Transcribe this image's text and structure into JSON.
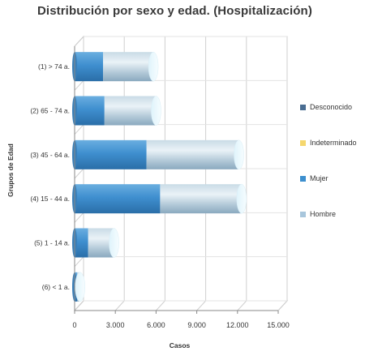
{
  "chart_data": {
    "type": "bar",
    "orientation": "horizontal",
    "stacked": true,
    "title": "Distribución por sexo y edad. (Hospitalización)",
    "xlabel": "Casos",
    "ylabel": "Grupos de Edad",
    "xlim": [
      0,
      15000
    ],
    "x_ticks": [
      "0",
      "3.000",
      "6.000",
      "9.000",
      "12.000",
      "15.000"
    ],
    "x_tick_values": [
      0,
      3000,
      6000,
      9000,
      12000,
      15000
    ],
    "categories": [
      "(1) > 74 a.",
      "(2) 65 - 74 a.",
      "(3) 45 - 64 a.",
      "(4) 15 - 44 a.",
      "(5) 1 - 14 a.",
      "(6) < 1 a."
    ],
    "series": [
      {
        "name": "Desconocido",
        "values": [
          0,
          0,
          0,
          0,
          0,
          0
        ],
        "color": "#4a6d92"
      },
      {
        "name": "Indeterminado",
        "values": [
          0,
          0,
          0,
          0,
          0,
          0
        ],
        "color": "#f5d76e"
      },
      {
        "name": "Mujer",
        "values": [
          2100,
          2200,
          5300,
          6300,
          1000,
          200
        ],
        "color": "#3d8fce"
      },
      {
        "name": "Hombre",
        "values": [
          3700,
          3800,
          6800,
          6000,
          1900,
          200
        ],
        "color": "#a8c6dc"
      }
    ],
    "grid": true,
    "legend_position": "right"
  }
}
